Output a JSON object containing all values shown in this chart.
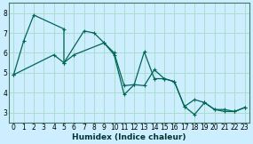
{
  "xlabel": "Humidex (Indice chaleur)",
  "background_color": "#cceeff",
  "grid_color": "#aaddcc",
  "line_color": "#006655",
  "xlim": [
    -0.5,
    23.5
  ],
  "ylim": [
    2.5,
    8.5
  ],
  "xticks": [
    0,
    1,
    2,
    3,
    4,
    5,
    6,
    7,
    8,
    9,
    10,
    11,
    12,
    13,
    14,
    15,
    16,
    17,
    18,
    19,
    20,
    21,
    22,
    23
  ],
  "yticks": [
    3,
    4,
    5,
    6,
    7,
    8
  ],
  "series1_x": [
    0,
    1,
    2,
    5,
    5,
    6,
    9,
    10,
    11,
    12,
    13,
    14,
    15,
    16,
    17,
    18,
    19,
    20,
    21,
    22,
    23
  ],
  "series1_y": [
    4.9,
    6.6,
    7.9,
    7.2,
    5.5,
    5.9,
    6.5,
    5.9,
    3.9,
    4.4,
    4.35,
    5.15,
    4.7,
    4.55,
    3.3,
    3.65,
    3.5,
    3.15,
    3.05,
    3.05,
    3.25
  ],
  "series2_x": [
    0,
    4,
    5,
    7,
    8,
    9,
    10,
    11,
    12,
    13,
    14,
    15,
    16,
    17,
    18,
    19,
    20,
    21,
    22,
    23
  ],
  "series2_y": [
    4.9,
    5.9,
    5.5,
    7.1,
    7.0,
    6.5,
    6.0,
    4.35,
    4.4,
    6.05,
    4.7,
    4.7,
    4.55,
    3.3,
    2.9,
    3.5,
    3.15,
    3.15,
    3.05,
    3.25
  ]
}
